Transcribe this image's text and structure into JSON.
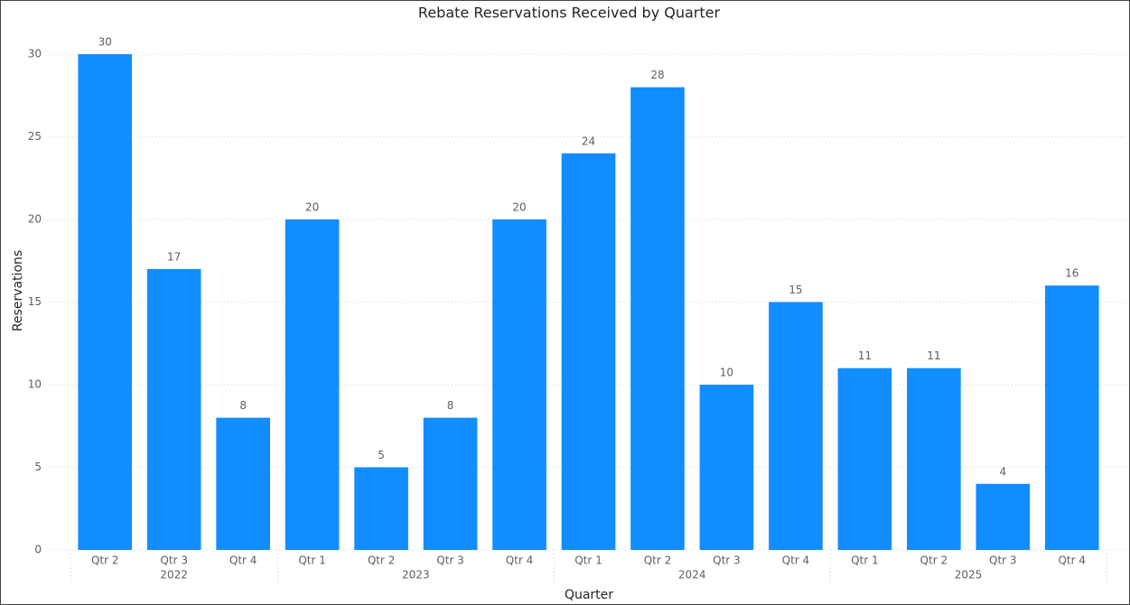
{
  "chart_data": {
    "type": "bar",
    "title": "Rebate Reservations Received by Quarter",
    "x_label": "Quarter",
    "y_label": "Reservations",
    "color": "#118dff",
    "groups": [
      {
        "name": "2022",
        "categories": [
          "Qtr 2",
          "Qtr 3",
          "Qtr 4"
        ],
        "values": [
          30,
          17,
          8
        ]
      },
      {
        "name": "2023",
        "categories": [
          "Qtr 1",
          "Qtr 2",
          "Qtr 3",
          "Qtr 4"
        ],
        "values": [
          20,
          5,
          8,
          20
        ]
      },
      {
        "name": "2024",
        "categories": [
          "Qtr 1",
          "Qtr 2",
          "Qtr 3",
          "Qtr 4"
        ],
        "values": [
          24,
          28,
          10,
          15
        ]
      },
      {
        "name": "2025",
        "categories": [
          "Qtr 1",
          "Qtr 2",
          "Qtr 3",
          "Qtr 4"
        ],
        "values": [
          11,
          11,
          4,
          16
        ]
      }
    ],
    "ylim": [
      0,
      30
    ],
    "yticks": [
      0,
      5,
      10,
      15,
      20,
      25,
      30
    ],
    "grid": true
  }
}
